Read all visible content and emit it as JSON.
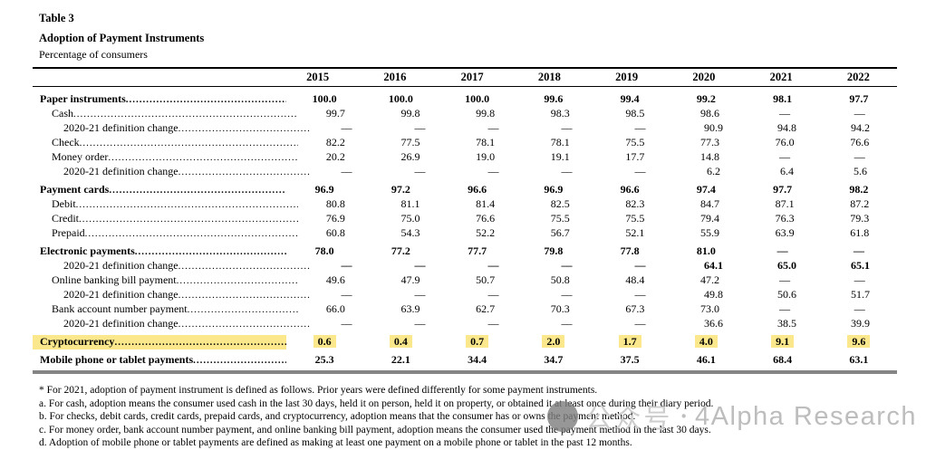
{
  "page": {
    "table_number": "Table 3",
    "title": "Adoption of Payment Instruments",
    "subtitle": "Percentage of consumers"
  },
  "colors": {
    "highlight_yellow": "#FBE88C",
    "bottom_rule_gray": "#858585",
    "watermark_gray": "#BDBDBD"
  },
  "table": {
    "columns": [
      "2015",
      "2016",
      "2017",
      "2018",
      "2019",
      "2020",
      "2021",
      "2022"
    ],
    "rows": [
      {
        "label": "Paper instruments",
        "indent": 0,
        "bold": true,
        "values_bold": true,
        "gap": true,
        "values": [
          "100.0",
          "100.0",
          "100.0",
          "99.6",
          "99.4",
          "99.2",
          "98.1",
          "97.7"
        ]
      },
      {
        "label": "Cash",
        "indent": 1,
        "values": [
          "99.7",
          "99.8",
          "99.8",
          "98.3",
          "98.5",
          "98.6",
          "—",
          "—"
        ]
      },
      {
        "label": "2020-21 definition change",
        "indent": 2,
        "values": [
          "—",
          "—",
          "—",
          "—",
          "—",
          "90.9",
          "94.8",
          "94.2"
        ]
      },
      {
        "label": "Check",
        "indent": 1,
        "values": [
          "82.2",
          "77.5",
          "78.1",
          "78.1",
          "75.5",
          "77.3",
          "76.0",
          "76.6"
        ]
      },
      {
        "label": "Money order",
        "indent": 1,
        "values": [
          "20.2",
          "26.9",
          "19.0",
          "19.1",
          "17.7",
          "14.8",
          "—",
          "—"
        ]
      },
      {
        "label": "2020-21 definition change",
        "indent": 2,
        "values": [
          "—",
          "—",
          "—",
          "—",
          "—",
          "6.2",
          "6.4",
          "5.6"
        ]
      },
      {
        "label": "Payment cards",
        "indent": 0,
        "bold": true,
        "values_bold": true,
        "gap": true,
        "values": [
          "96.9",
          "97.2",
          "96.6",
          "96.9",
          "96.6",
          "97.4",
          "97.7",
          "98.2"
        ]
      },
      {
        "label": "Debit",
        "indent": 1,
        "values": [
          "80.8",
          "81.1",
          "81.4",
          "82.5",
          "82.3",
          "84.7",
          "87.1",
          "87.2"
        ]
      },
      {
        "label": "Credit",
        "indent": 1,
        "values": [
          "76.9",
          "75.0",
          "76.6",
          "75.5",
          "75.5",
          "79.4",
          "76.3",
          "79.3"
        ]
      },
      {
        "label": "Prepaid",
        "indent": 1,
        "values": [
          "60.8",
          "54.3",
          "52.2",
          "56.7",
          "52.1",
          "55.9",
          "63.9",
          "61.8"
        ]
      },
      {
        "label": "Electronic payments",
        "indent": 0,
        "bold": true,
        "values_bold": true,
        "gap": true,
        "values": [
          "78.0",
          "77.2",
          "77.7",
          "79.8",
          "77.8",
          "81.0",
          "—",
          "—"
        ]
      },
      {
        "label": "2020-21 definition change",
        "indent": 2,
        "values_bold": true,
        "values": [
          "—",
          "—",
          "—",
          "—",
          "—",
          "64.1",
          "65.0",
          "65.1"
        ]
      },
      {
        "label": "Online banking bill payment",
        "indent": 1,
        "values": [
          "49.6",
          "47.9",
          "50.7",
          "50.8",
          "48.4",
          "47.2",
          "—",
          "—"
        ]
      },
      {
        "label": "2020-21 definition change",
        "indent": 2,
        "values": [
          "—",
          "—",
          "—",
          "—",
          "—",
          "49.8",
          "50.6",
          "51.7"
        ]
      },
      {
        "label": "Bank account number payment",
        "indent": 1,
        "values": [
          "66.0",
          "63.9",
          "62.7",
          "70.3",
          "67.3",
          "73.0",
          "—",
          "—"
        ]
      },
      {
        "label": "2020-21 definition change",
        "indent": 2,
        "values": [
          "—",
          "—",
          "—",
          "—",
          "—",
          "36.6",
          "38.5",
          "39.9"
        ]
      },
      {
        "label": "Cryptocurrency",
        "indent": 0,
        "bold": true,
        "values_bold": true,
        "gap": true,
        "highlight": true,
        "values": [
          "0.6",
          "0.4",
          "0.7",
          "2.0",
          "1.7",
          "4.0",
          "9.1",
          "9.6"
        ]
      },
      {
        "label": "Mobile phone or tablet payments",
        "indent": 0,
        "bold": true,
        "values_bold": true,
        "gap": true,
        "values": [
          "25.3",
          "22.1",
          "34.4",
          "34.7",
          "37.5",
          "46.1",
          "68.4",
          "63.1"
        ]
      }
    ]
  },
  "footnotes": [
    "* For 2021, adoption of payment instrument is defined as follows. Prior years were defined differently for some payment instruments.",
    "a. For cash, adoption means the consumer used cash in the last 30 days, held it on person, held it on property, or obtained it at least once during their diary period.",
    "b. For checks, debit cards, credit cards, prepaid cards, and cryptocurrency, adoption means that the consumer has or owns the payment method.",
    "c. For money order, bank account number payment, and online banking bill payment, adoption means the consumer used the payment method in the last 30 days.",
    "d. Adoption of mobile phone or tablet payments are defined as making at least one payment on a mobile phone or tablet in the past 12 months."
  ],
  "watermark": {
    "cn_label": "公众号",
    "separator": "·",
    "brand": "4Alpha Research"
  }
}
